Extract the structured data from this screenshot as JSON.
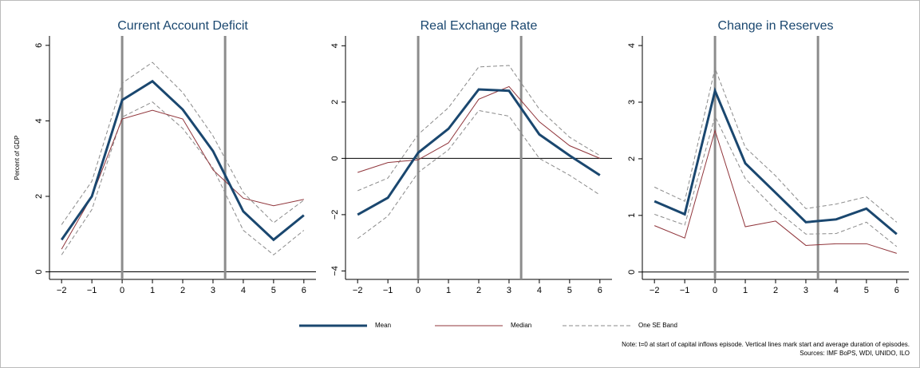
{
  "chart_data": [
    {
      "type": "line",
      "title": "Current Account Deficit",
      "ylabel": "Percent of GDP",
      "x": [
        -2,
        -1,
        0,
        1,
        2,
        3,
        4,
        5,
        6
      ],
      "series": [
        {
          "name": "Mean",
          "color": "#1a476f",
          "values": [
            0.85,
            2.0,
            4.55,
            5.05,
            4.3,
            3.2,
            1.6,
            0.85,
            1.5
          ]
        },
        {
          "name": "Median",
          "color": "#90353b",
          "values": [
            0.6,
            2.0,
            4.05,
            4.28,
            4.05,
            2.7,
            1.95,
            1.75,
            1.92
          ]
        },
        {
          "name": "One SE Band",
          "color": "#8a8a8a",
          "lower": [
            0.45,
            1.65,
            4.1,
            4.5,
            3.8,
            2.75,
            1.1,
            0.45,
            1.1
          ],
          "upper": [
            1.25,
            2.4,
            5.0,
            5.55,
            4.75,
            3.6,
            2.1,
            1.3,
            1.9
          ]
        }
      ],
      "xlim": [
        -2.4,
        6.4
      ],
      "ylim": [
        -0.2,
        6.25
      ],
      "xticks": [
        {
          "value": -2,
          "label": "−2"
        },
        {
          "value": -1,
          "label": "−1"
        },
        0,
        1,
        2,
        3,
        4,
        5,
        6
      ],
      "yticks": [
        0,
        2,
        4,
        6
      ],
      "vlines": [
        0,
        3.4
      ],
      "hline": 0
    },
    {
      "type": "line",
      "title": "Real Exchange Rate",
      "x": [
        -2,
        -1,
        0,
        1,
        2,
        3,
        4,
        5,
        6
      ],
      "series": [
        {
          "name": "Mean",
          "color": "#1a476f",
          "values": [
            -2.0,
            -1.4,
            0.2,
            1.05,
            2.45,
            2.4,
            0.85,
            0.1,
            -0.6
          ]
        },
        {
          "name": "Median",
          "color": "#90353b",
          "values": [
            -0.5,
            -0.15,
            -0.05,
            0.55,
            2.1,
            2.55,
            1.3,
            0.45,
            0.0
          ]
        },
        {
          "name": "One SE Band",
          "color": "#8a8a8a",
          "lower": [
            -2.85,
            -2.05,
            -0.5,
            0.3,
            1.7,
            1.5,
            0.0,
            -0.6,
            -1.3
          ],
          "upper": [
            -1.15,
            -0.7,
            0.85,
            1.8,
            3.25,
            3.3,
            1.75,
            0.75,
            0.1
          ]
        }
      ],
      "xlim": [
        -2.4,
        6.4
      ],
      "ylim": [
        -4.3,
        4.35
      ],
      "xticks": [
        {
          "value": -2,
          "label": "−2"
        },
        {
          "value": -1,
          "label": "−1"
        },
        0,
        1,
        2,
        3,
        4,
        5,
        6
      ],
      "yticks": [
        {
          "value": -4,
          "label": "−4"
        },
        {
          "value": -2,
          "label": "−2"
        },
        0,
        2,
        4
      ],
      "vlines": [
        0,
        3.4
      ],
      "hline": 0
    },
    {
      "type": "line",
      "title": "Change in Reserves",
      "x": [
        -2,
        -1,
        0,
        1,
        2,
        3,
        4,
        5,
        6
      ],
      "series": [
        {
          "name": "Mean",
          "color": "#1a476f",
          "values": [
            1.25,
            1.02,
            3.2,
            1.92,
            1.4,
            0.88,
            0.93,
            1.12,
            0.67
          ]
        },
        {
          "name": "Median",
          "color": "#90353b",
          "values": [
            0.82,
            0.6,
            2.5,
            0.8,
            0.9,
            0.47,
            0.5,
            0.5,
            0.33
          ]
        },
        {
          "name": "One SE Band",
          "color": "#8a8a8a",
          "lower": [
            1.02,
            0.83,
            2.75,
            1.65,
            1.1,
            0.67,
            0.68,
            0.88,
            0.45
          ],
          "upper": [
            1.5,
            1.25,
            3.6,
            2.2,
            1.7,
            1.12,
            1.2,
            1.33,
            0.88
          ]
        }
      ],
      "xlim": [
        -2.4,
        6.4
      ],
      "ylim": [
        -0.13,
        4.17
      ],
      "xticks": [
        {
          "value": -2,
          "label": "−2"
        },
        {
          "value": -1,
          "label": "−1"
        },
        0,
        1,
        2,
        3,
        4,
        5,
        6
      ],
      "yticks": [
        0,
        1,
        2,
        3,
        4
      ],
      "vlines": [
        0,
        3.4
      ],
      "hline": 0
    }
  ],
  "notes": [
    "Note: t=0 at start of capital inflows episode. Vertical lines mark start and average duration of episodes.",
    "Sources: IMF BoPS, WDI, UNIDO, ILO"
  ]
}
